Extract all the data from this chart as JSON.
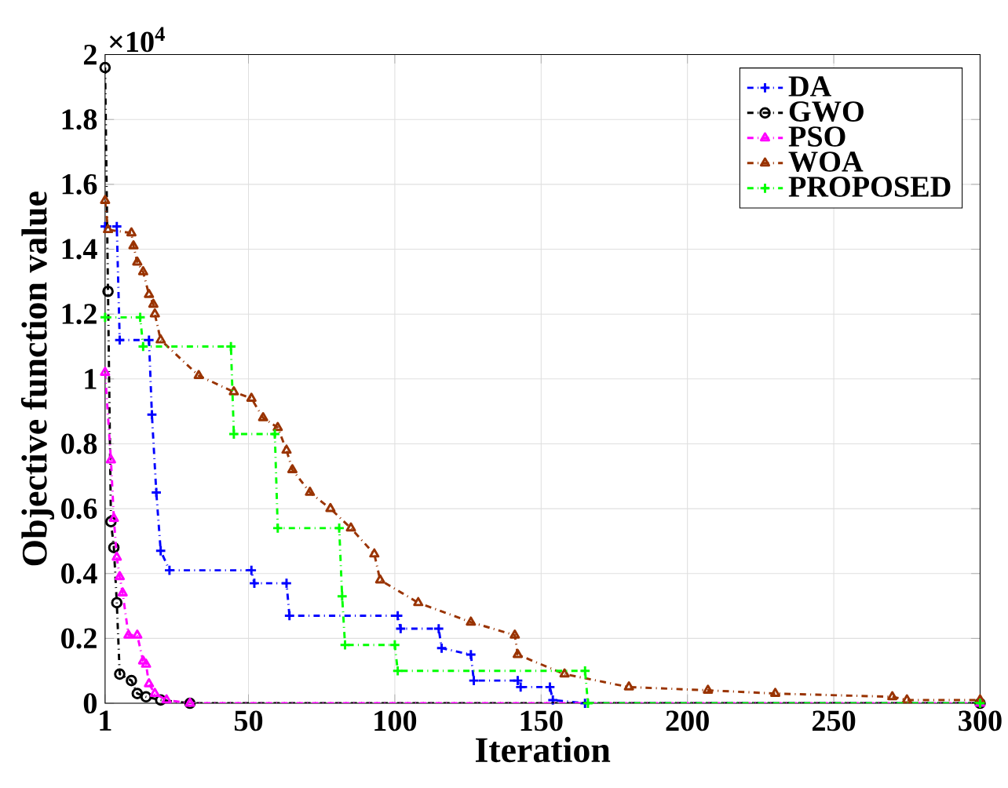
{
  "chart_data": {
    "type": "line",
    "xlabel": "Iteration",
    "ylabel": "Objective function value",
    "annotations": [
      "×10$^{4}$"
    ],
    "xlim": [
      1,
      300
    ],
    "ylim": [
      0,
      2
    ],
    "xticks": [
      1,
      50,
      100,
      150,
      200,
      250,
      300
    ],
    "yticks": [
      0,
      0.2,
      0.4,
      0.6,
      0.8,
      1,
      1.2,
      1.4,
      1.6,
      1.8,
      2
    ],
    "grid": true,
    "legend": "top right",
    "line_style": "dashed",
    "series": [
      {
        "name": "DA",
        "color": "#0000ff",
        "marker": "cross",
        "x": [
          1,
          5,
          6,
          16,
          17,
          18.5,
          20,
          23,
          51,
          52,
          63,
          64,
          101,
          102,
          115,
          116,
          126,
          127,
          142,
          143,
          153,
          154,
          165,
          300
        ],
        "values": [
          1.47,
          1.47,
          1.12,
          1.12,
          0.89,
          0.65,
          0.47,
          0.41,
          0.41,
          0.37,
          0.37,
          0.27,
          0.27,
          0.23,
          0.23,
          0.17,
          0.15,
          0.07,
          0.07,
          0.05,
          0.05,
          0.01,
          0,
          0
        ]
      },
      {
        "name": "GWO",
        "color": "#000000",
        "marker": "circle",
        "x": [
          1,
          2,
          3,
          4,
          5,
          6,
          10,
          12,
          15,
          20,
          30,
          300
        ],
        "values": [
          1.96,
          1.27,
          0.56,
          0.48,
          0.31,
          0.09,
          0.07,
          0.03,
          0.02,
          0.01,
          0,
          0
        ]
      },
      {
        "name": "PSO",
        "color": "#ff00ff",
        "marker": "triangle",
        "x": [
          1,
          3,
          4,
          5,
          6,
          7,
          9,
          12,
          14,
          15,
          16,
          18,
          22,
          30,
          300
        ],
        "values": [
          1.02,
          0.75,
          0.57,
          0.45,
          0.39,
          0.34,
          0.21,
          0.21,
          0.13,
          0.12,
          0.06,
          0.03,
          0.01,
          0,
          0
        ]
      },
      {
        "name": "WOA",
        "color": "#993300",
        "marker": "triangle",
        "x": [
          1,
          2,
          10,
          10.7,
          12,
          14,
          16,
          17.5,
          18,
          20,
          33,
          45,
          51,
          55,
          60,
          63,
          65,
          71,
          78,
          85,
          93,
          95,
          108,
          126,
          141,
          142,
          158,
          180,
          207,
          230,
          270,
          275,
          300
        ],
        "values": [
          1.55,
          1.46,
          1.45,
          1.41,
          1.36,
          1.33,
          1.26,
          1.23,
          1.2,
          1.12,
          1.01,
          0.96,
          0.94,
          0.88,
          0.85,
          0.78,
          0.72,
          0.65,
          0.6,
          0.54,
          0.46,
          0.38,
          0.31,
          0.25,
          0.21,
          0.15,
          0.09,
          0.05,
          0.04,
          0.03,
          0.02,
          0.01,
          0.01
        ]
      },
      {
        "name": "PROPOSED",
        "color": "#00ff00",
        "marker": "cross",
        "x": [
          1,
          13,
          14,
          44,
          45,
          59,
          60,
          81,
          82,
          83,
          100,
          101,
          165,
          166,
          300
        ],
        "values": [
          1.19,
          1.19,
          1.1,
          1.1,
          0.83,
          0.83,
          0.54,
          0.54,
          0.33,
          0.18,
          0.18,
          0.1,
          0.1,
          0,
          0
        ]
      }
    ]
  }
}
